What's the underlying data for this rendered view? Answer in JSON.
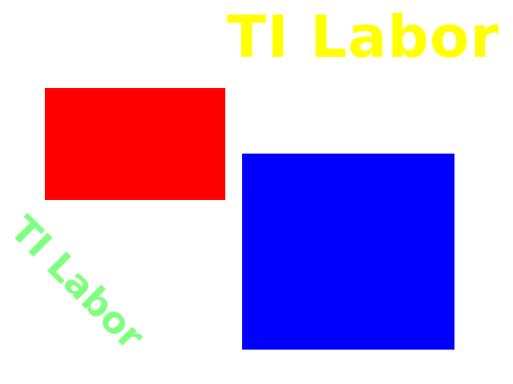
{
  "canvas": {
    "background": "#ffffff",
    "title": {
      "text": "TI Labor",
      "color": "#ffff00"
    },
    "rotated_label": {
      "text": "TI Labor",
      "color": "#80ff80",
      "rotation_deg": 45
    },
    "shapes": {
      "red_rect": {
        "color": "#ff0000"
      },
      "blue_rect": {
        "color": "#0000ff"
      }
    }
  }
}
